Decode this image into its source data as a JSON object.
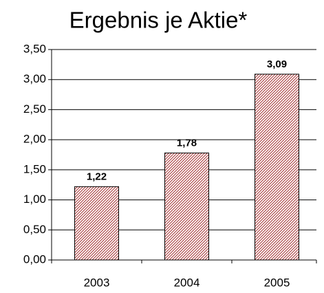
{
  "chart_data": {
    "type": "bar",
    "title": "Ergebnis je Aktie*",
    "categories": [
      "2003",
      "2004",
      "2005"
    ],
    "values": [
      1.22,
      1.78,
      3.09
    ],
    "value_labels": [
      "1,22",
      "1,78",
      "3,09"
    ],
    "color": "#a83a3a",
    "ylim": [
      0,
      3.5
    ],
    "yticks": [
      {
        "value": 0,
        "label": "0,00"
      },
      {
        "value": 0.5,
        "label": "0,50"
      },
      {
        "value": 1,
        "label": "1,00"
      },
      {
        "value": 1.5,
        "label": "1,50"
      },
      {
        "value": 2,
        "label": "2,00"
      },
      {
        "value": 2.5,
        "label": "2,50"
      },
      {
        "value": 3,
        "label": "3,00"
      },
      {
        "value": 3.5,
        "label": "3,50"
      }
    ],
    "grid": true
  }
}
